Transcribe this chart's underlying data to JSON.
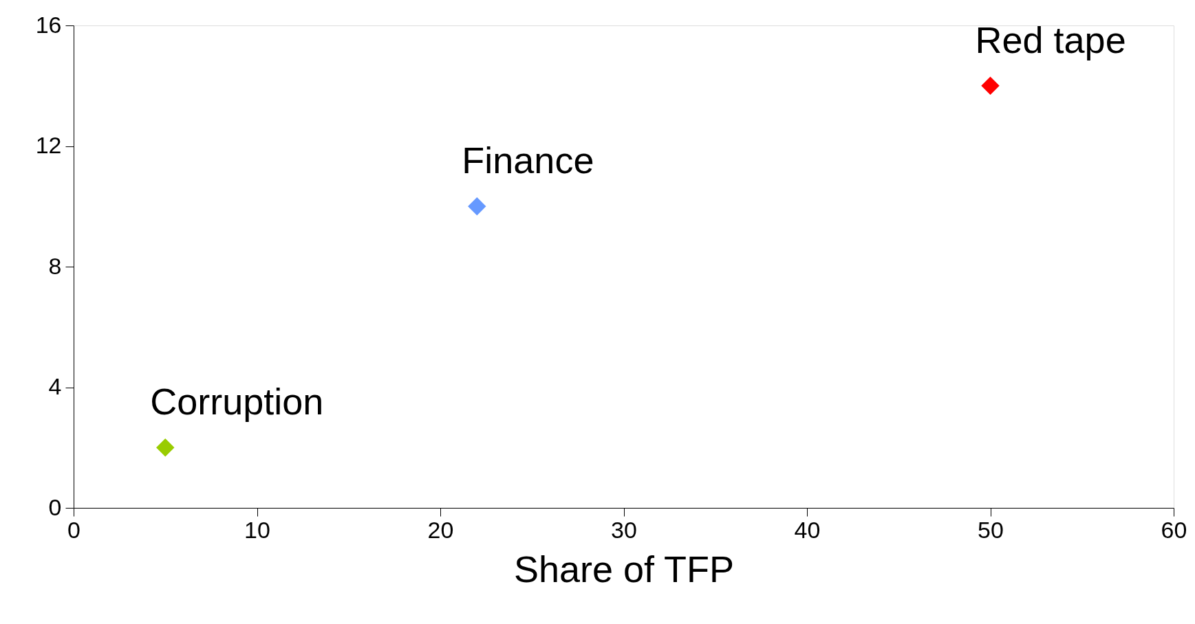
{
  "chart_data": {
    "type": "scatter",
    "xlabel": "Share of TFP",
    "series": [
      {
        "name": "Corruption",
        "color": "#99cc00",
        "x": [
          5
        ],
        "values": [
          2
        ]
      },
      {
        "name": "Finance",
        "color": "#6699ff",
        "x": [
          22
        ],
        "values": [
          10
        ]
      },
      {
        "name": "Red tape",
        "color": "#ff0000",
        "x": [
          50
        ],
        "values": [
          14
        ]
      }
    ],
    "xlim": [
      0,
      60
    ],
    "xticks": [
      0,
      10,
      20,
      30,
      40,
      50,
      60
    ],
    "ylim": [
      0,
      16
    ],
    "yticks": [
      0,
      4,
      8,
      12,
      16
    ],
    "marker": "diamond",
    "grid": false,
    "legend": false
  }
}
